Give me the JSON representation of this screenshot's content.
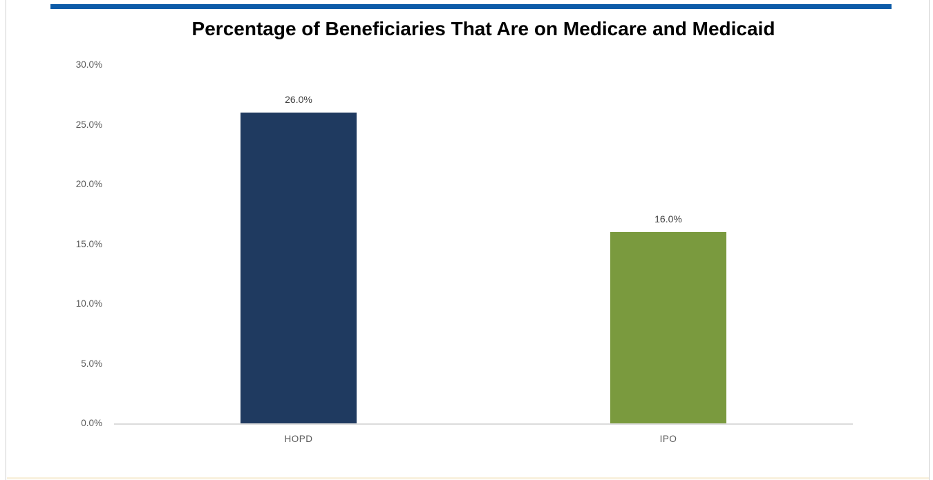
{
  "chart_data": {
    "type": "bar",
    "title": "Percentage of Beneficiaries That Are on Medicare and Medicaid",
    "categories": [
      "HOPD",
      "IPO"
    ],
    "values": [
      26.0,
      16.0
    ],
    "data_labels": [
      "26.0%",
      "16.0%"
    ],
    "bar_colors": [
      "#1f3a60",
      "#7a9a3e"
    ],
    "y_ticks": [
      "30.0%",
      "25.0%",
      "20.0%",
      "15.0%",
      "10.0%",
      "5.0%",
      "0.0%"
    ],
    "y_tick_values": [
      30,
      25,
      20,
      15,
      10,
      5,
      0
    ],
    "ylim": [
      0,
      30
    ],
    "xlabel": "",
    "ylabel": "",
    "grid": "off",
    "legend": "none",
    "data_labels_position": "above-bar"
  },
  "colors": {
    "top_rule": "#0d5ba8",
    "bar_hopd": "#1f3a60",
    "bar_ipo": "#7a9a3e",
    "tick_label": "#595959",
    "data_label": "#404040",
    "axis_line": "#dcdcdc",
    "page_edge": "#cfcfcf",
    "bottom_band": "#f8f1dd"
  }
}
